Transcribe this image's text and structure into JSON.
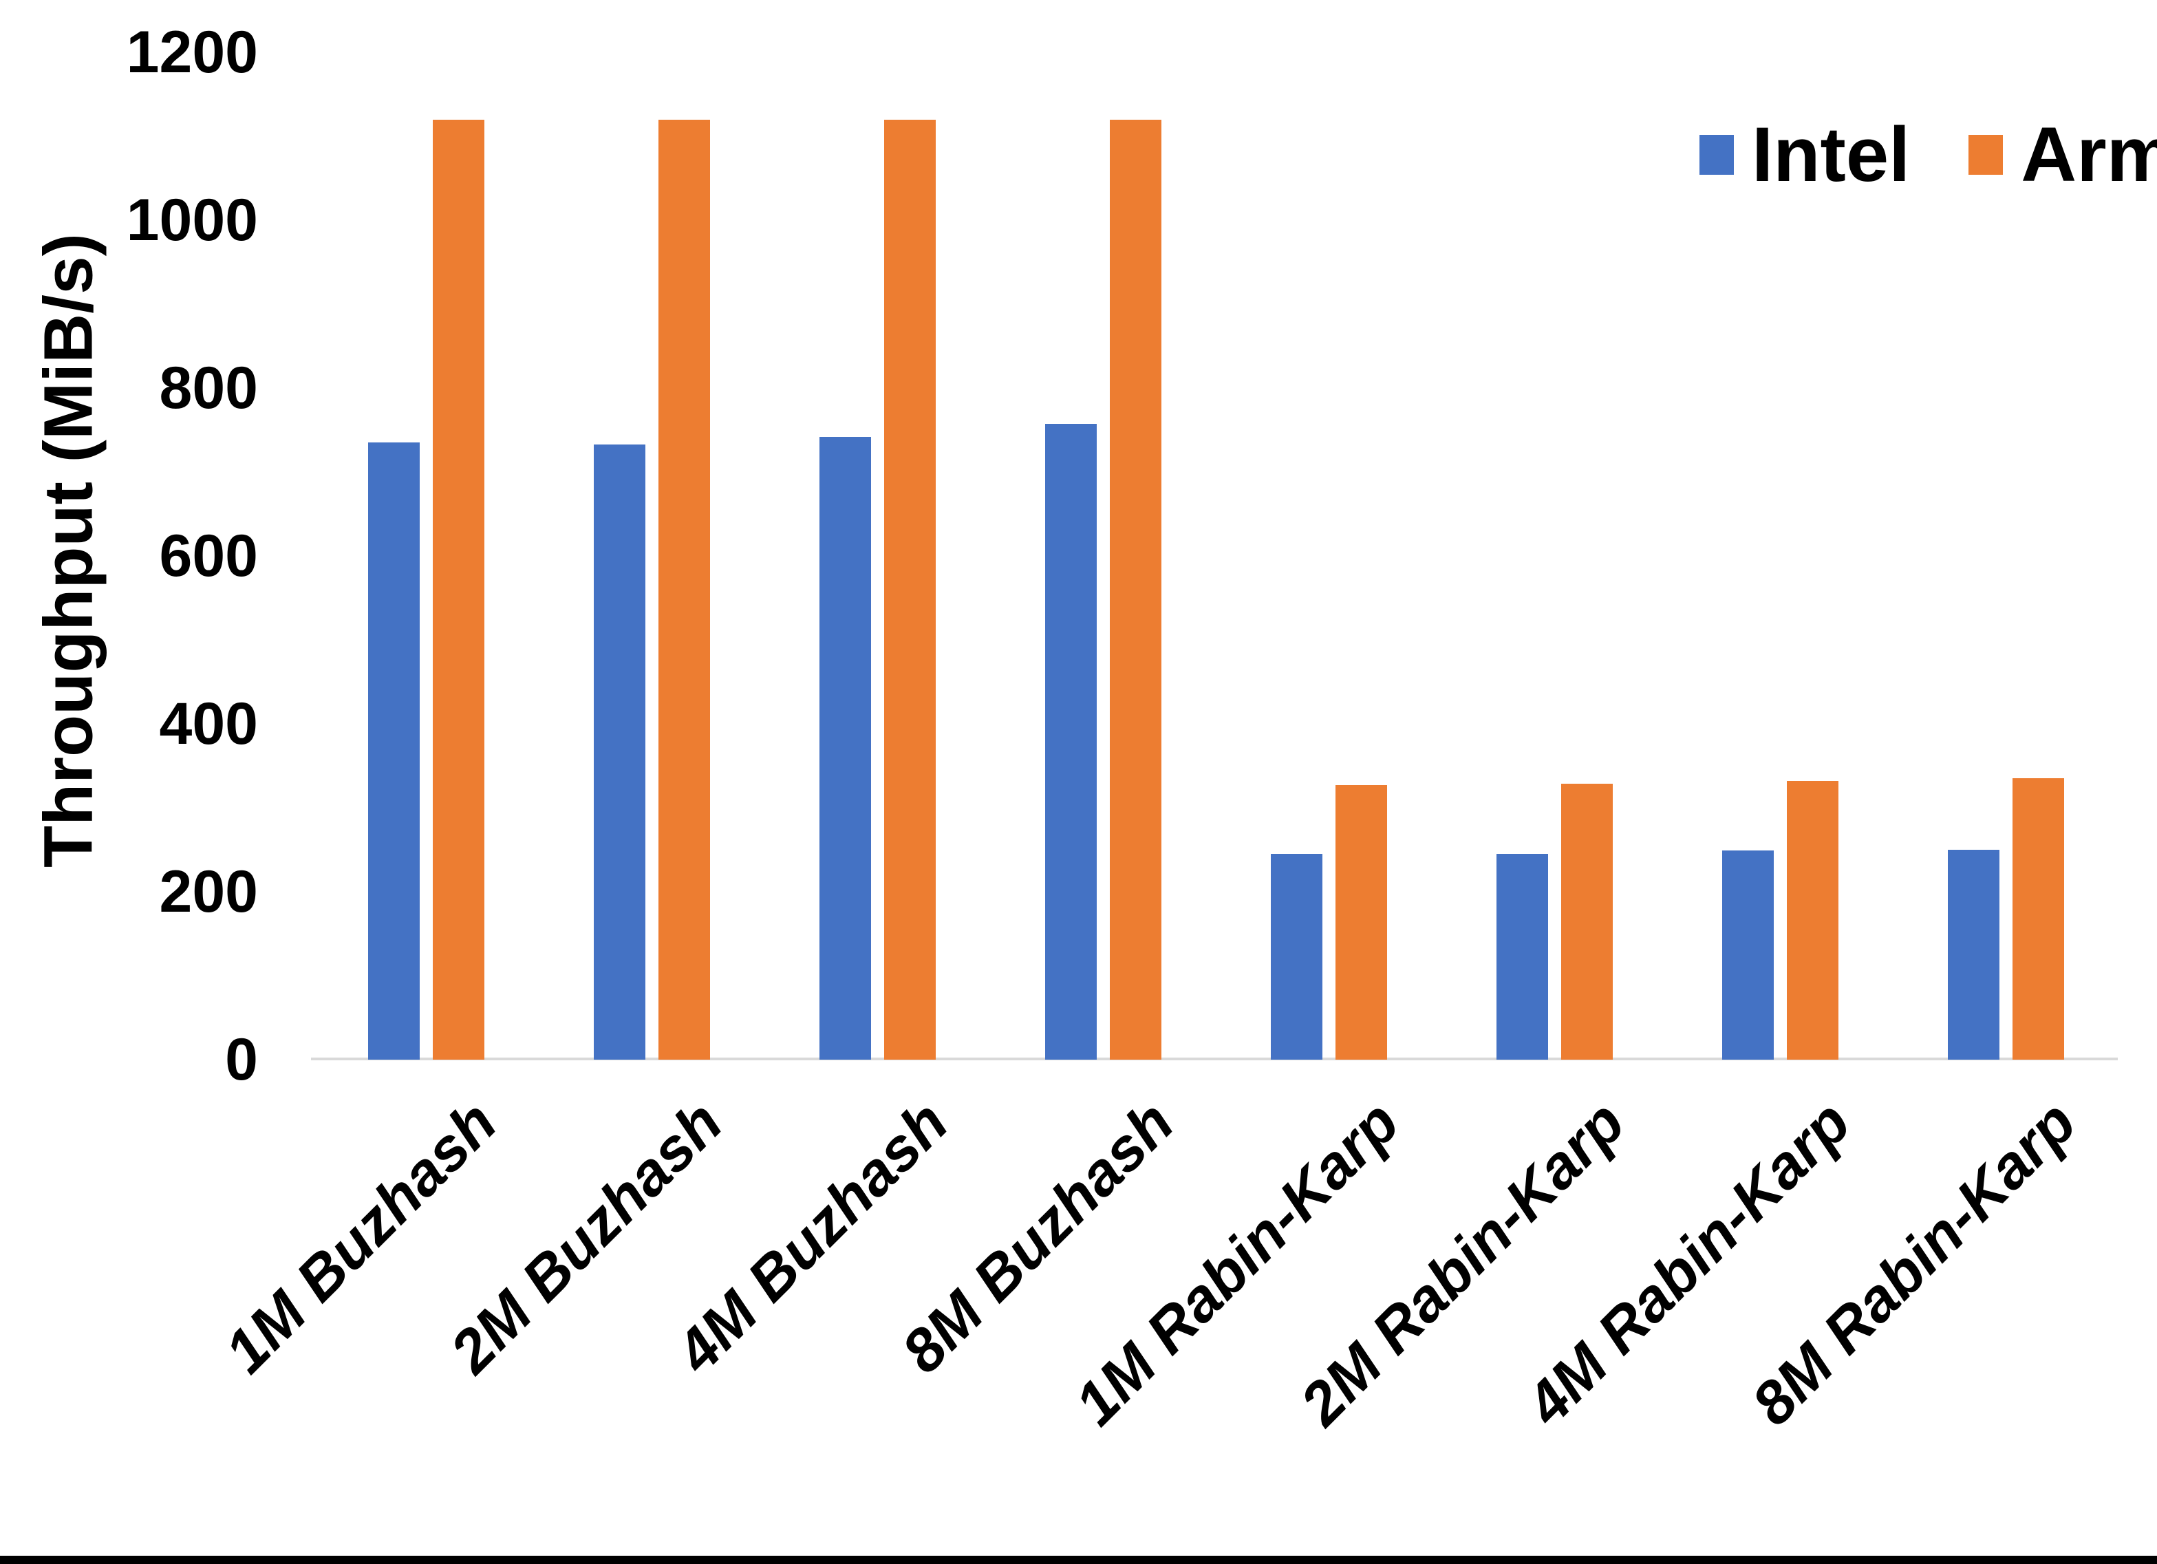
{
  "chart_data": {
    "type": "bar",
    "title": "",
    "xlabel": "",
    "ylabel": "Throughput (MiB/s)",
    "categories": [
      "1M Buzhash",
      "2M Buzhash",
      "4M Buzhash",
      "8M Buzhash",
      "1M Rabin-Karp",
      "2M Rabin-Karp",
      "4M Rabin-Karp",
      "8M Rabin-Karp"
    ],
    "series": [
      {
        "name": "Intel",
        "color": "#4472C4",
        "values": [
          735,
          733,
          742,
          757,
          245,
          245,
          249,
          250
        ]
      },
      {
        "name": "Arm",
        "color": "#ED7D31",
        "values": [
          1120,
          1120,
          1120,
          1120,
          327,
          329,
          332,
          335
        ]
      }
    ],
    "y_ticks": [
      0,
      200,
      400,
      600,
      800,
      1000,
      1200
    ],
    "ylim": [
      0,
      1200
    ],
    "grid": false,
    "legend_position": "top-right",
    "colors": {
      "axis_line": "#D9D9D9",
      "text": "#000000",
      "background": "#FFFFFF",
      "bottom_border": "#000000"
    }
  }
}
